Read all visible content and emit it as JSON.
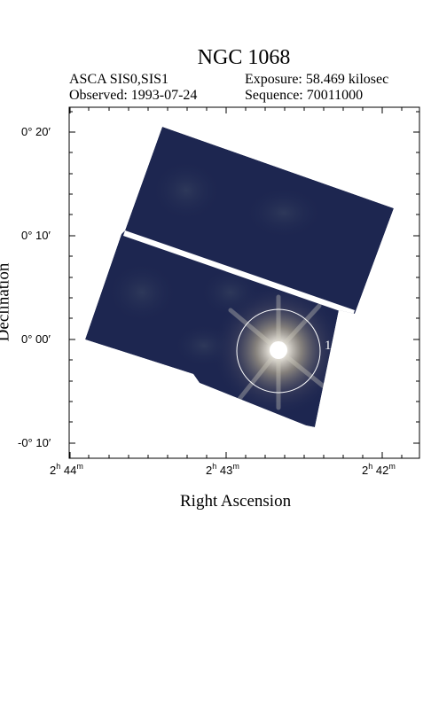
{
  "title": "NGC 1068",
  "header": {
    "instrument": "ASCA SIS0,SIS1",
    "observed": "Observed: 1993-07-24",
    "exposure": "Exposure: 58.469 kilosec",
    "sequence": "Sequence: 70011000"
  },
  "axes": {
    "xlabel": "Right Ascension",
    "ylabel": "Declination",
    "dec_ticks": [
      "0° 20′",
      "0° 10′",
      "0° 00′",
      "-0° 10′"
    ],
    "ra_ticks": [
      {
        "h": "2",
        "m": "44"
      },
      {
        "h": "2",
        "m": "43"
      },
      {
        "h": "2",
        "m": "42"
      }
    ],
    "ra_units": {
      "h": "h",
      "m": "m"
    }
  },
  "region": {
    "label": "1"
  },
  "colors": {
    "field": "#1d2650",
    "source_core": "#ffffff",
    "region_circle": "#ffffff"
  }
}
